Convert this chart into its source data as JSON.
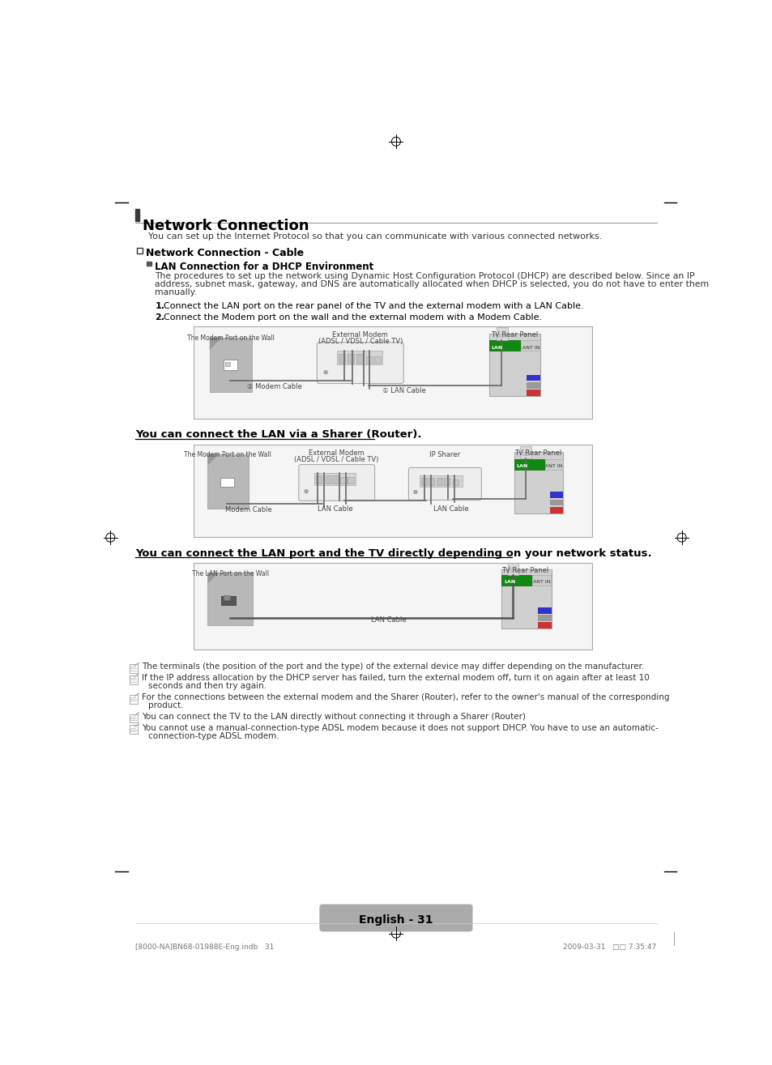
{
  "title": "Network Connection",
  "subtitle": "You can set up the Internet Protocol so that you can communicate with various connected networks.",
  "section1": "Network Connection - Cable",
  "subsection1": "LAN Connection for a DHCP Environment",
  "para1_lines": [
    "The procedures to set up the network using Dynamic Host Configuration Protocol (DHCP) are described below. Since an IP",
    "address, subnet mask, gateway, and DNS are automatically allocated when DHCP is selected, you do not have to enter them",
    "manually."
  ],
  "step1_num": "1.",
  "step1_text": "Connect the LAN port on the rear panel of the TV and the external modem with a LAN Cable.",
  "step2_num": "2.",
  "step2_text": "Connect the Modem port on the wall and the external modem with a Modem Cable.",
  "bold_line1": "You can connect the LAN via a Sharer (Router).",
  "bold_line2": "You can connect the LAN port and the TV directly depending on your network status.",
  "note1": "The terminals (the position of the port and the type) of the external device may differ depending on the manufacturer.",
  "note2_lines": [
    "If the IP address allocation by the DHCP server has failed, turn the external modem off, turn it on again after at least 10",
    "seconds and then try again."
  ],
  "note3_lines": [
    "For the connections between the external modem and the Sharer (Router), refer to the owner's manual of the corresponding",
    "product."
  ],
  "note4": "You can connect the TV to the LAN directly without connecting it through a Sharer (Router)",
  "note5_lines": [
    "You cannot use a manual-connection-type ADSL modem because it does not support DHCP. You have to use an automatic-",
    "connection-type ADSL modem."
  ],
  "footer": "English - 31",
  "footer_file": "[8000-NA]BN68-01988E-Eng.indb   31",
  "footer_date": "2009-03-31   □□ 7:35:47",
  "bg_color": "#ffffff"
}
